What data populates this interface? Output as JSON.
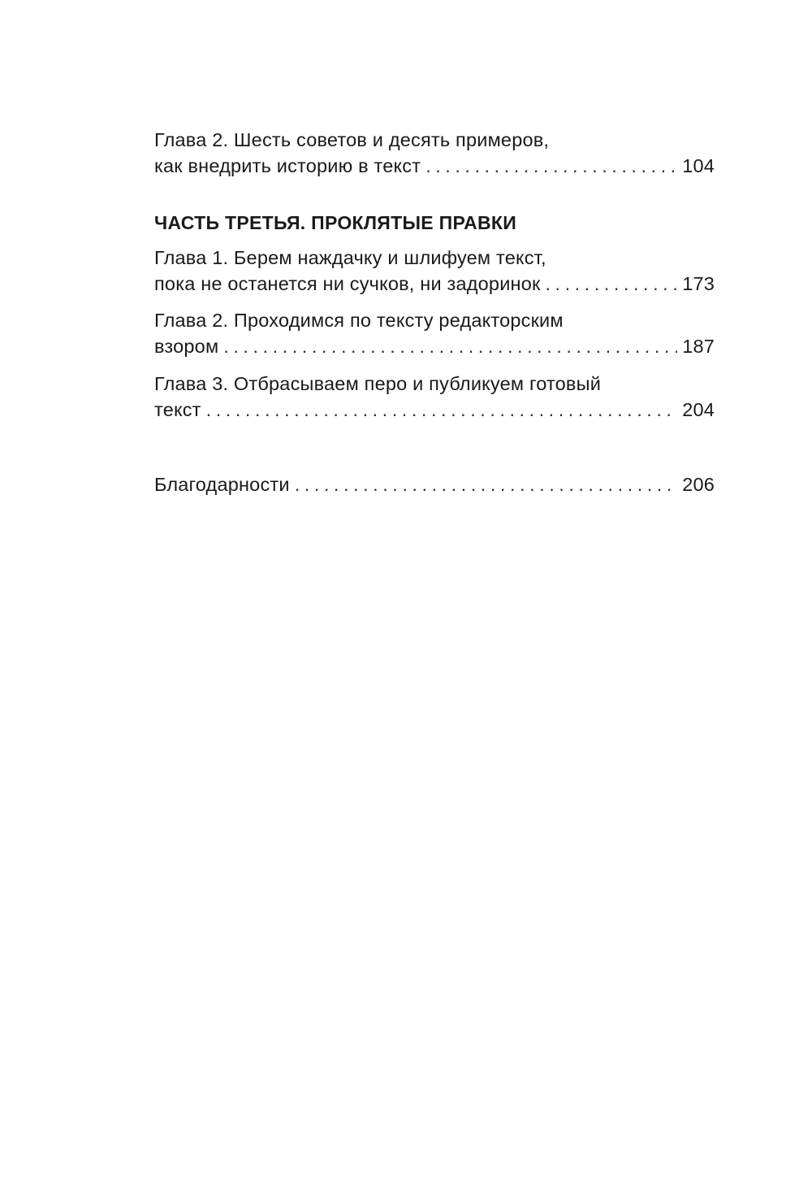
{
  "toc": {
    "entries_before": [
      {
        "title_line1": "Глава 2. Шесть советов и десять примеров,",
        "title_line2": "как внедрить историю в текст",
        "page": "104"
      }
    ],
    "part_heading": "ЧАСТЬ ТРЕТЬЯ. ПРОКЛЯТЫЕ ПРАВКИ",
    "entries": [
      {
        "title_line1": "Глава 1. Берем наждачку и шлифуем текст,",
        "title_line2": "пока не останется ни сучков, ни задоринок",
        "page": "173"
      },
      {
        "title_line1": "Глава 2. Проходимся по тексту редакторским",
        "title_line2": "взором",
        "page": "187"
      },
      {
        "title_line1": "Глава 3. Отбрасываем перо и публикуем готовый",
        "title_line2": "текст",
        "page": "204"
      }
    ],
    "acknowledgements": {
      "title": "Благодарности",
      "page": "206"
    }
  }
}
